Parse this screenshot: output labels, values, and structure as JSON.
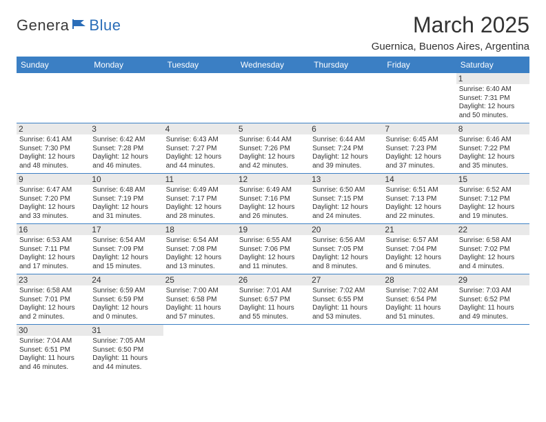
{
  "logo": {
    "part1": "Genera",
    "part2": "Blue"
  },
  "title": "March 2025",
  "location": "Guernica, Buenos Aires, Argentina",
  "headers": [
    "Sunday",
    "Monday",
    "Tuesday",
    "Wednesday",
    "Thursday",
    "Friday",
    "Saturday"
  ],
  "colors": {
    "header_bg": "#3b7fc4",
    "header_text": "#ffffff",
    "daynum_bg": "#e9e9e9",
    "border": "#3b7fc4",
    "logo_blue": "#2a6db8"
  },
  "weeks": [
    [
      null,
      null,
      null,
      null,
      null,
      null,
      {
        "n": "1",
        "sr": "Sunrise: 6:40 AM",
        "ss": "Sunset: 7:31 PM",
        "dl1": "Daylight: 12 hours",
        "dl2": "and 50 minutes."
      }
    ],
    [
      {
        "n": "2",
        "sr": "Sunrise: 6:41 AM",
        "ss": "Sunset: 7:30 PM",
        "dl1": "Daylight: 12 hours",
        "dl2": "and 48 minutes."
      },
      {
        "n": "3",
        "sr": "Sunrise: 6:42 AM",
        "ss": "Sunset: 7:28 PM",
        "dl1": "Daylight: 12 hours",
        "dl2": "and 46 minutes."
      },
      {
        "n": "4",
        "sr": "Sunrise: 6:43 AM",
        "ss": "Sunset: 7:27 PM",
        "dl1": "Daylight: 12 hours",
        "dl2": "and 44 minutes."
      },
      {
        "n": "5",
        "sr": "Sunrise: 6:44 AM",
        "ss": "Sunset: 7:26 PM",
        "dl1": "Daylight: 12 hours",
        "dl2": "and 42 minutes."
      },
      {
        "n": "6",
        "sr": "Sunrise: 6:44 AM",
        "ss": "Sunset: 7:24 PM",
        "dl1": "Daylight: 12 hours",
        "dl2": "and 39 minutes."
      },
      {
        "n": "7",
        "sr": "Sunrise: 6:45 AM",
        "ss": "Sunset: 7:23 PM",
        "dl1": "Daylight: 12 hours",
        "dl2": "and 37 minutes."
      },
      {
        "n": "8",
        "sr": "Sunrise: 6:46 AM",
        "ss": "Sunset: 7:22 PM",
        "dl1": "Daylight: 12 hours",
        "dl2": "and 35 minutes."
      }
    ],
    [
      {
        "n": "9",
        "sr": "Sunrise: 6:47 AM",
        "ss": "Sunset: 7:20 PM",
        "dl1": "Daylight: 12 hours",
        "dl2": "and 33 minutes."
      },
      {
        "n": "10",
        "sr": "Sunrise: 6:48 AM",
        "ss": "Sunset: 7:19 PM",
        "dl1": "Daylight: 12 hours",
        "dl2": "and 31 minutes."
      },
      {
        "n": "11",
        "sr": "Sunrise: 6:49 AM",
        "ss": "Sunset: 7:17 PM",
        "dl1": "Daylight: 12 hours",
        "dl2": "and 28 minutes."
      },
      {
        "n": "12",
        "sr": "Sunrise: 6:49 AM",
        "ss": "Sunset: 7:16 PM",
        "dl1": "Daylight: 12 hours",
        "dl2": "and 26 minutes."
      },
      {
        "n": "13",
        "sr": "Sunrise: 6:50 AM",
        "ss": "Sunset: 7:15 PM",
        "dl1": "Daylight: 12 hours",
        "dl2": "and 24 minutes."
      },
      {
        "n": "14",
        "sr": "Sunrise: 6:51 AM",
        "ss": "Sunset: 7:13 PM",
        "dl1": "Daylight: 12 hours",
        "dl2": "and 22 minutes."
      },
      {
        "n": "15",
        "sr": "Sunrise: 6:52 AM",
        "ss": "Sunset: 7:12 PM",
        "dl1": "Daylight: 12 hours",
        "dl2": "and 19 minutes."
      }
    ],
    [
      {
        "n": "16",
        "sr": "Sunrise: 6:53 AM",
        "ss": "Sunset: 7:11 PM",
        "dl1": "Daylight: 12 hours",
        "dl2": "and 17 minutes."
      },
      {
        "n": "17",
        "sr": "Sunrise: 6:54 AM",
        "ss": "Sunset: 7:09 PM",
        "dl1": "Daylight: 12 hours",
        "dl2": "and 15 minutes."
      },
      {
        "n": "18",
        "sr": "Sunrise: 6:54 AM",
        "ss": "Sunset: 7:08 PM",
        "dl1": "Daylight: 12 hours",
        "dl2": "and 13 minutes."
      },
      {
        "n": "19",
        "sr": "Sunrise: 6:55 AM",
        "ss": "Sunset: 7:06 PM",
        "dl1": "Daylight: 12 hours",
        "dl2": "and 11 minutes."
      },
      {
        "n": "20",
        "sr": "Sunrise: 6:56 AM",
        "ss": "Sunset: 7:05 PM",
        "dl1": "Daylight: 12 hours",
        "dl2": "and 8 minutes."
      },
      {
        "n": "21",
        "sr": "Sunrise: 6:57 AM",
        "ss": "Sunset: 7:04 PM",
        "dl1": "Daylight: 12 hours",
        "dl2": "and 6 minutes."
      },
      {
        "n": "22",
        "sr": "Sunrise: 6:58 AM",
        "ss": "Sunset: 7:02 PM",
        "dl1": "Daylight: 12 hours",
        "dl2": "and 4 minutes."
      }
    ],
    [
      {
        "n": "23",
        "sr": "Sunrise: 6:58 AM",
        "ss": "Sunset: 7:01 PM",
        "dl1": "Daylight: 12 hours",
        "dl2": "and 2 minutes."
      },
      {
        "n": "24",
        "sr": "Sunrise: 6:59 AM",
        "ss": "Sunset: 6:59 PM",
        "dl1": "Daylight: 12 hours",
        "dl2": "and 0 minutes."
      },
      {
        "n": "25",
        "sr": "Sunrise: 7:00 AM",
        "ss": "Sunset: 6:58 PM",
        "dl1": "Daylight: 11 hours",
        "dl2": "and 57 minutes."
      },
      {
        "n": "26",
        "sr": "Sunrise: 7:01 AM",
        "ss": "Sunset: 6:57 PM",
        "dl1": "Daylight: 11 hours",
        "dl2": "and 55 minutes."
      },
      {
        "n": "27",
        "sr": "Sunrise: 7:02 AM",
        "ss": "Sunset: 6:55 PM",
        "dl1": "Daylight: 11 hours",
        "dl2": "and 53 minutes."
      },
      {
        "n": "28",
        "sr": "Sunrise: 7:02 AM",
        "ss": "Sunset: 6:54 PM",
        "dl1": "Daylight: 11 hours",
        "dl2": "and 51 minutes."
      },
      {
        "n": "29",
        "sr": "Sunrise: 7:03 AM",
        "ss": "Sunset: 6:52 PM",
        "dl1": "Daylight: 11 hours",
        "dl2": "and 49 minutes."
      }
    ],
    [
      {
        "n": "30",
        "sr": "Sunrise: 7:04 AM",
        "ss": "Sunset: 6:51 PM",
        "dl1": "Daylight: 11 hours",
        "dl2": "and 46 minutes."
      },
      {
        "n": "31",
        "sr": "Sunrise: 7:05 AM",
        "ss": "Sunset: 6:50 PM",
        "dl1": "Daylight: 11 hours",
        "dl2": "and 44 minutes."
      },
      null,
      null,
      null,
      null,
      null
    ]
  ]
}
